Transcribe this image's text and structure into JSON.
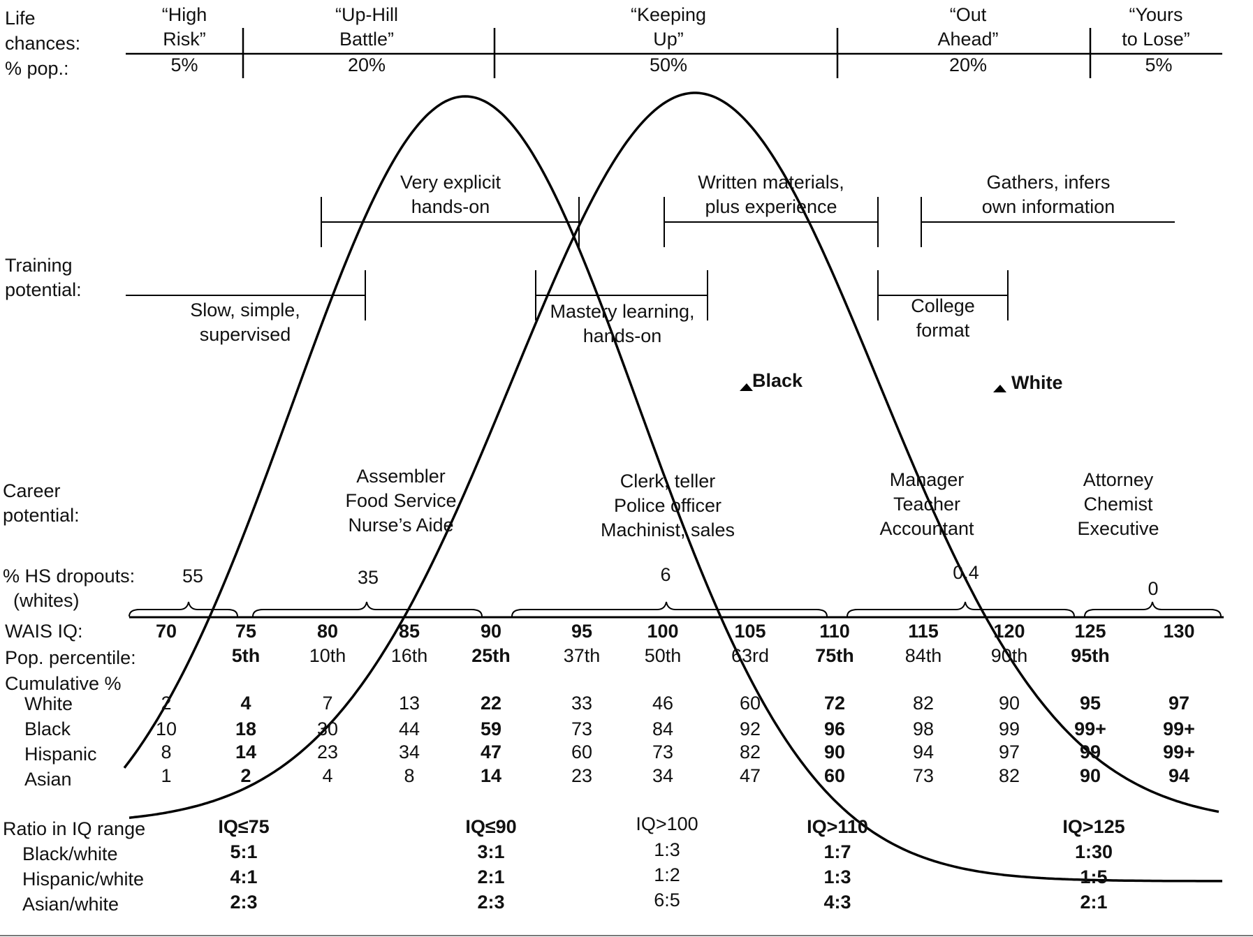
{
  "life_chances": {
    "label": "Life\nchances:\n% pop.:",
    "groups": [
      {
        "name": "“High\nRisk”",
        "pct": "5%"
      },
      {
        "name": "“Up-Hill\nBattle”",
        "pct": "20%"
      },
      {
        "name": "“Keeping\nUp”",
        "pct": "50%"
      },
      {
        "name": "“Out\nAhead”",
        "pct": "20%"
      },
      {
        "name": "“Yours\nto Lose”",
        "pct": "5%"
      }
    ]
  },
  "training": {
    "label": "Training\npotential:",
    "upper": [
      {
        "text": "Very explicit\nhands-on"
      },
      {
        "text": "Written materials,\nplus experience"
      },
      {
        "text": "Gathers, infers\nown information"
      }
    ],
    "lower": [
      {
        "text": "Slow, simple,\nsupervised"
      },
      {
        "text": "Mastery learning,\nhands-on"
      },
      {
        "text": "College\nformat"
      }
    ]
  },
  "curves": {
    "black_label": "Black",
    "white_label": "White"
  },
  "career": {
    "label": "Career\npotential:",
    "groups": [
      "Assembler\nFood Service\nNurse’s Aide",
      "Clerk, teller\nPolice officer\nMachinist, sales",
      "Manager\nTeacher\nAccountant",
      "Attorney\nChemist\nExecutive"
    ]
  },
  "dropouts": {
    "label": "% HS dropouts:\n  (whites)",
    "values": [
      "55",
      "35",
      "6",
      "0.4",
      "0"
    ]
  },
  "wais": {
    "label": "WAIS IQ:",
    "values": [
      "70",
      "75",
      "80",
      "85",
      "90",
      "95",
      "100",
      "105",
      "110",
      "115",
      "120",
      "125",
      "130"
    ]
  },
  "percentile": {
    "label": "Pop. percentile:",
    "values": [
      "",
      "5th",
      "10th",
      "16th",
      "25th",
      "37th",
      "50th",
      "63rd",
      "75th",
      "84th",
      "90th",
      "95th",
      ""
    ]
  },
  "cumulative": {
    "label": "Cumulative %",
    "rows": [
      {
        "label": "White",
        "values": [
          "2",
          "4",
          "7",
          "13",
          "22",
          "33",
          "46",
          "60",
          "72",
          "82",
          "90",
          "95",
          "97"
        ]
      },
      {
        "label": "Black",
        "values": [
          "10",
          "18",
          "30",
          "44",
          "59",
          "73",
          "84",
          "92",
          "96",
          "98",
          "99",
          "99+",
          "99+"
        ]
      },
      {
        "label": "Hispanic",
        "values": [
          "8",
          "14",
          "23",
          "34",
          "47",
          "60",
          "73",
          "82",
          "90",
          "94",
          "97",
          "99",
          "99+"
        ]
      },
      {
        "label": "Asian",
        "values": [
          "1",
          "2",
          "4",
          "8",
          "14",
          "23",
          "34",
          "47",
          "60",
          "73",
          "82",
          "90",
          "94"
        ]
      }
    ]
  },
  "ratio": {
    "label": "Ratio in IQ range",
    "row_labels": [
      "Black/white",
      "Hispanic/white",
      "Asian/white"
    ],
    "columns": [
      {
        "header": "IQ≤75",
        "values": [
          "5:1",
          "4:1",
          "2:3"
        ]
      },
      {
        "header": "IQ≤90",
        "values": [
          "3:1",
          "2:1",
          "2:3"
        ]
      },
      {
        "header": "IQ>100",
        "values": [
          "1:3",
          "1:2",
          "6:5"
        ]
      },
      {
        "header": "IQ>110",
        "values": [
          "1:7",
          "1:3",
          "4:3"
        ]
      },
      {
        "header": "IQ>125",
        "values": [
          "1:30",
          "1:5",
          "2:1"
        ]
      }
    ]
  }
}
